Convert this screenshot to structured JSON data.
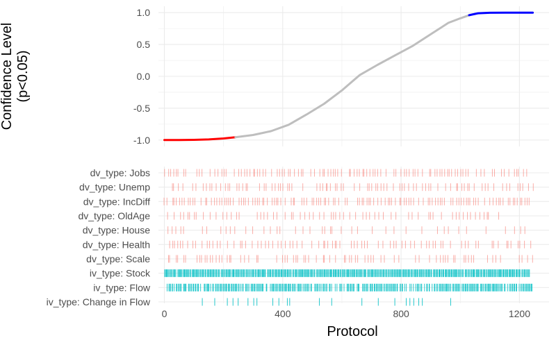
{
  "colors": {
    "negative": "#ff0000",
    "positive": "#0000ff",
    "neutral": "#bebebe",
    "dv": "#f8766d",
    "iv": "#00bfc4",
    "grid": "#ebebeb"
  },
  "chart_data": [
    {
      "type": "line",
      "title": "",
      "ylabel_line1": "Confidence Level",
      "ylabel_line2": "(p<0.05)",
      "xlim": [
        -20,
        1300
      ],
      "ylim": [
        -1.1,
        1.1
      ],
      "yticks": [
        -1.0,
        -0.5,
        0.0,
        0.5,
        1.0
      ],
      "ytick_labels": [
        "-1.0",
        "-0.5",
        "0.0",
        "0.5",
        "1.0"
      ],
      "series": [
        {
          "color_key": "negative",
          "x": [
            0,
            50,
            100,
            150,
            200,
            240
          ],
          "y": [
            -1.0,
            -1.0,
            -0.997,
            -0.99,
            -0.975,
            -0.955
          ]
        },
        {
          "color_key": "neutral",
          "x": [
            240,
            300,
            360,
            420,
            480,
            540,
            600,
            660,
            720,
            780,
            840,
            900,
            960,
            1000,
            1030
          ],
          "y": [
            -0.955,
            -0.92,
            -0.86,
            -0.76,
            -0.6,
            -0.43,
            -0.22,
            0.02,
            0.18,
            0.33,
            0.48,
            0.66,
            0.84,
            0.91,
            0.96
          ]
        },
        {
          "color_key": "positive",
          "x": [
            1030,
            1060,
            1100,
            1150,
            1200,
            1245
          ],
          "y": [
            0.96,
            0.99,
            0.998,
            1.0,
            1.0,
            1.0
          ]
        }
      ]
    },
    {
      "type": "scatter",
      "title": "",
      "xlabel": "Protocol",
      "xlim": [
        -20,
        1300
      ],
      "xticks": [
        0,
        400,
        800,
        1200
      ],
      "xtick_labels": [
        "0",
        "400",
        "800",
        "1200"
      ],
      "rows": [
        {
          "label": "dv_type: Jobs",
          "color_key": "dv",
          "start": 2,
          "end": 1240,
          "step": 9,
          "keep": 0.78
        },
        {
          "label": "dv_type: Unemp",
          "color_key": "dv",
          "start": 4,
          "end": 1245,
          "step": 10,
          "keep": 0.72
        },
        {
          "label": "dv_type: IncDiff",
          "color_key": "dv",
          "start": 2,
          "end": 1240,
          "step": 8,
          "keep": 0.8
        },
        {
          "label": "dv_type: OldAge",
          "color_key": "dv",
          "start": 10,
          "end": 1240,
          "step": 11,
          "keep": 0.55
        },
        {
          "label": "dv_type: House",
          "color_key": "dv",
          "start": 12,
          "end": 1240,
          "step": 13,
          "keep": 0.5
        },
        {
          "label": "dv_type: Health",
          "color_key": "dv",
          "start": 15,
          "end": 1245,
          "step": 10,
          "keep": 0.62
        },
        {
          "label": "dv_type: Scale",
          "color_key": "dv",
          "start": 12,
          "end": 1245,
          "step": 9,
          "keep": 0.62
        },
        {
          "label": "iv_type: Stock",
          "color_key": "iv",
          "start": 0,
          "end": 1235,
          "step": 3,
          "keep": 0.97
        },
        {
          "label": "iv_type: Flow",
          "color_key": "iv",
          "start": 8,
          "end": 1245,
          "step": 3.5,
          "keep": 0.85
        },
        {
          "label": "iv_type: Change in Flow",
          "color_key": "iv",
          "start": 90,
          "end": 990,
          "step": 14,
          "keep": 0.38
        }
      ]
    }
  ]
}
